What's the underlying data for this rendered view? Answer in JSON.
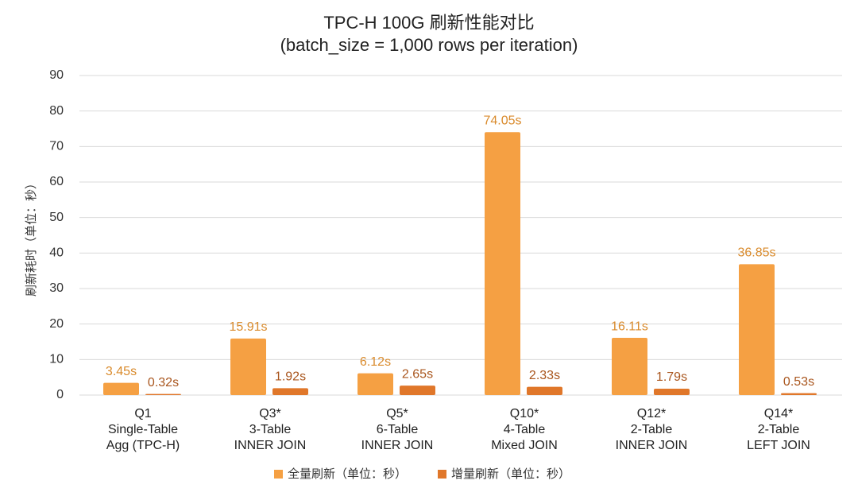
{
  "chart_data": {
    "type": "bar",
    "title": [
      "TPC-H 100G 刷新性能对比",
      "(batch_size = 1,000 rows per iteration)"
    ],
    "y_label": "刷新耗时（单位：秒）",
    "categories": [
      [
        "Q1",
        "Single-Table",
        "Agg (TPC-H)"
      ],
      [
        "Q3*",
        "3-Table",
        "INNER JOIN"
      ],
      [
        "Q5*",
        "6-Table",
        "INNER JOIN"
      ],
      [
        "Q10*",
        "4-Table",
        "Mixed JOIN"
      ],
      [
        "Q12*",
        "2-Table",
        "INNER JOIN"
      ],
      [
        "Q14*",
        "2-Table",
        "LEFT JOIN"
      ]
    ],
    "series": [
      {
        "name": "全量刷新（单位：秒）",
        "color": "#f5a043",
        "values": [
          3.45,
          15.91,
          6.12,
          74.05,
          16.11,
          36.85
        ],
        "value_labels": [
          "3.45s",
          "15.91s",
          "6.12s",
          "74.05s",
          "16.11s",
          "36.85s"
        ]
      },
      {
        "name": "增量刷新（单位：秒）",
        "color": "#e0772a",
        "values": [
          0.32,
          1.92,
          2.65,
          2.33,
          1.79,
          0.53
        ],
        "value_labels": [
          "0.32s",
          "1.92s",
          "2.65s",
          "2.33s",
          "1.79s",
          "0.53s"
        ]
      }
    ],
    "ylim": [
      0,
      90
    ],
    "yticks": [
      0,
      10,
      20,
      30,
      40,
      50,
      60,
      70,
      80,
      90
    ],
    "grid": true,
    "legend": "bottom"
  }
}
